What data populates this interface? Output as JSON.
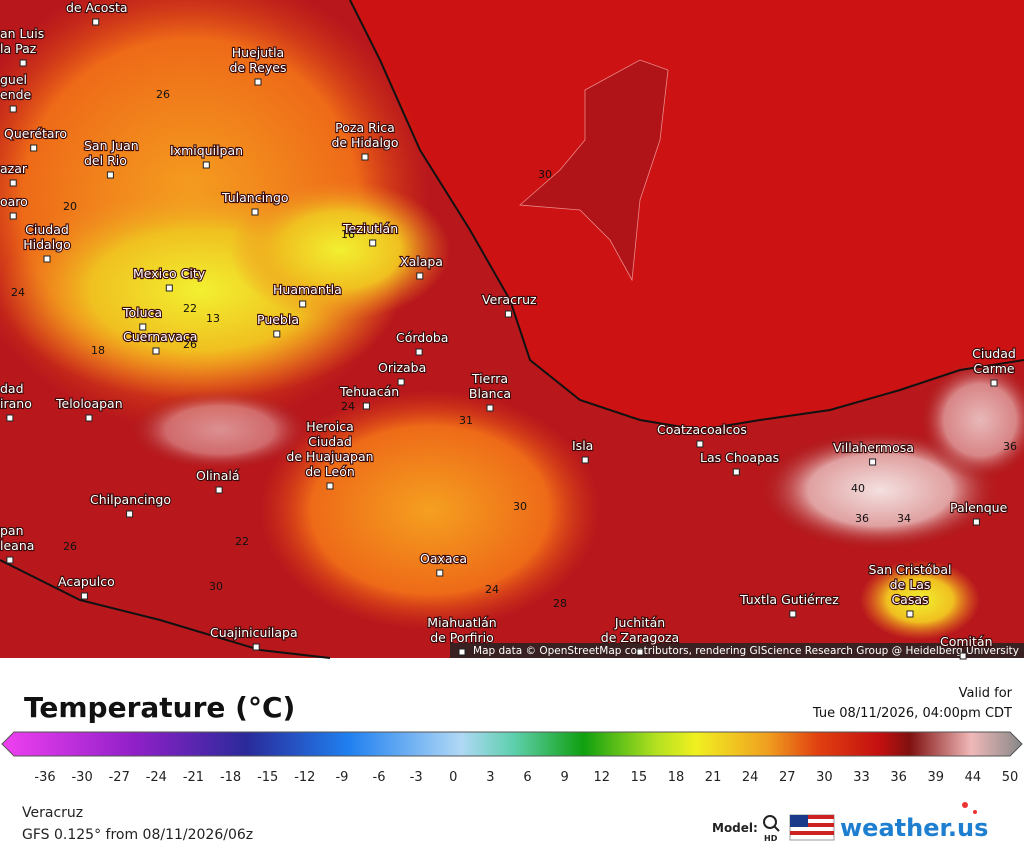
{
  "map": {
    "cities": [
      [
        "de Acosta"
      ],
      [
        "an Luis",
        "la Paz"
      ],
      [
        "guel",
        "ende"
      ],
      [
        "Huejutla",
        "de Reyes"
      ],
      [
        "Querétaro"
      ],
      [
        "San Juan",
        "del Rio"
      ],
      [
        "Ixmiquilpan"
      ],
      [
        "Poza Rica",
        "de Hidalgo"
      ],
      [
        "azar"
      ],
      [
        "oaro"
      ],
      [
        "Tulancingo"
      ],
      [
        "Ciudad",
        "Hidalgo"
      ],
      [
        "Teziutlán"
      ],
      [
        "Xalapa"
      ],
      [
        "Mexico City"
      ],
      [
        "Huamantla"
      ],
      [
        "Veracruz"
      ],
      [
        "Toluca"
      ],
      [
        "Puebla"
      ],
      [
        "Cuernavaca"
      ],
      [
        "Córdoba"
      ],
      [
        "Orizaba"
      ],
      [
        "Tierra",
        "Blanca"
      ],
      [
        "Tehuacán"
      ],
      [
        "Ciudad",
        "Carme"
      ],
      [
        "dad",
        "irano"
      ],
      [
        "Teloloapan"
      ],
      [
        "Heroica",
        "Ciudad",
        "de Huajuapan",
        "de León"
      ],
      [
        "Coatzacoalcos"
      ],
      [
        "Isla"
      ],
      [
        "Villahermosa"
      ],
      [
        "Las Choapas"
      ],
      [
        "Olinalá"
      ],
      [
        "Chilpancingo"
      ],
      [
        "Palenque"
      ],
      [
        "pan",
        "leana"
      ],
      [
        "Oaxaca"
      ],
      [
        "San Cristóbal",
        "de Las",
        "Casas"
      ],
      [
        "Acapulco"
      ],
      [
        "Tuxtla Gutiérrez"
      ],
      [
        "Miahuatlán",
        "de Porfirio"
      ],
      [
        "Juchitán",
        "de Zaragoza"
      ],
      [
        "Cuajinicuilapa"
      ],
      [
        "Comitán"
      ]
    ],
    "contour_labels": [
      26,
      20,
      16,
      24,
      22,
      13,
      18,
      26,
      30,
      24,
      31,
      30,
      22,
      26,
      30,
      24,
      28,
      36,
      36,
      34,
      40
    ],
    "attribution": "Map data © OpenStreetMap contributors, rendering GIScience Research Group @ Heidelberg University"
  },
  "legend": {
    "title": "Temperature (°C)",
    "valid_label": "Valid for",
    "valid_time": "Tue 08/11/2026, 04:00pm CDT",
    "scale_ticks": [
      -36,
      -30,
      -27,
      -24,
      -21,
      -18,
      -15,
      -12,
      -9,
      -6,
      -3,
      0,
      3,
      6,
      9,
      12,
      15,
      18,
      21,
      24,
      27,
      30,
      33,
      36,
      39,
      44,
      50
    ]
  },
  "footer": {
    "location": "Veracruz",
    "model_run": "GFS 0.125° from 08/11/2026/06z",
    "model_label": "Model:",
    "hd_label": "HD",
    "brand": "weather.us"
  }
}
